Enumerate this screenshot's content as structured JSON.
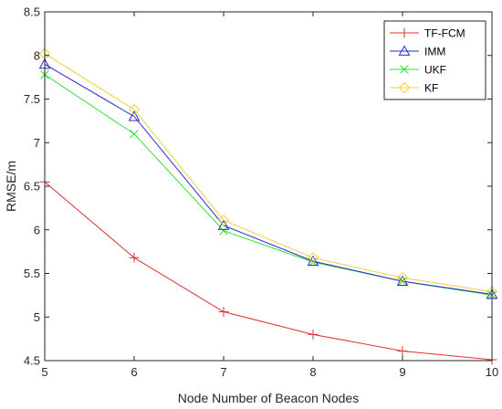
{
  "chart_data": {
    "type": "line",
    "xlabel": "Node Number of Beacon Nodes",
    "ylabel": "RMSE/m",
    "xlim": [
      5,
      10
    ],
    "ylim": [
      4.5,
      8.5
    ],
    "x": [
      5,
      6,
      7,
      8,
      9,
      10
    ],
    "xticks": [
      "5",
      "6",
      "7",
      "8",
      "9",
      "10"
    ],
    "yticks": [
      "4.5",
      "5",
      "5.5",
      "6",
      "6.5",
      "7",
      "7.5",
      "8",
      "8.5"
    ],
    "grid": false,
    "legend_position": "top-right",
    "series": [
      {
        "name": "TF-FCM",
        "values": [
          6.55,
          5.68,
          5.06,
          4.8,
          4.61,
          4.51
        ],
        "color": "#e03030",
        "marker": "plus"
      },
      {
        "name": "IMM",
        "values": [
          7.9,
          7.3,
          6.05,
          5.64,
          5.41,
          5.26
        ],
        "color": "#2a2ad0",
        "marker": "triangle"
      },
      {
        "name": "UKF",
        "values": [
          7.78,
          7.1,
          5.99,
          5.63,
          5.41,
          5.25
        ],
        "color": "#30e030",
        "marker": "x"
      },
      {
        "name": "KF",
        "values": [
          8.02,
          7.38,
          6.11,
          5.68,
          5.45,
          5.29
        ],
        "color": "#f0d040",
        "marker": "diamond"
      }
    ]
  }
}
